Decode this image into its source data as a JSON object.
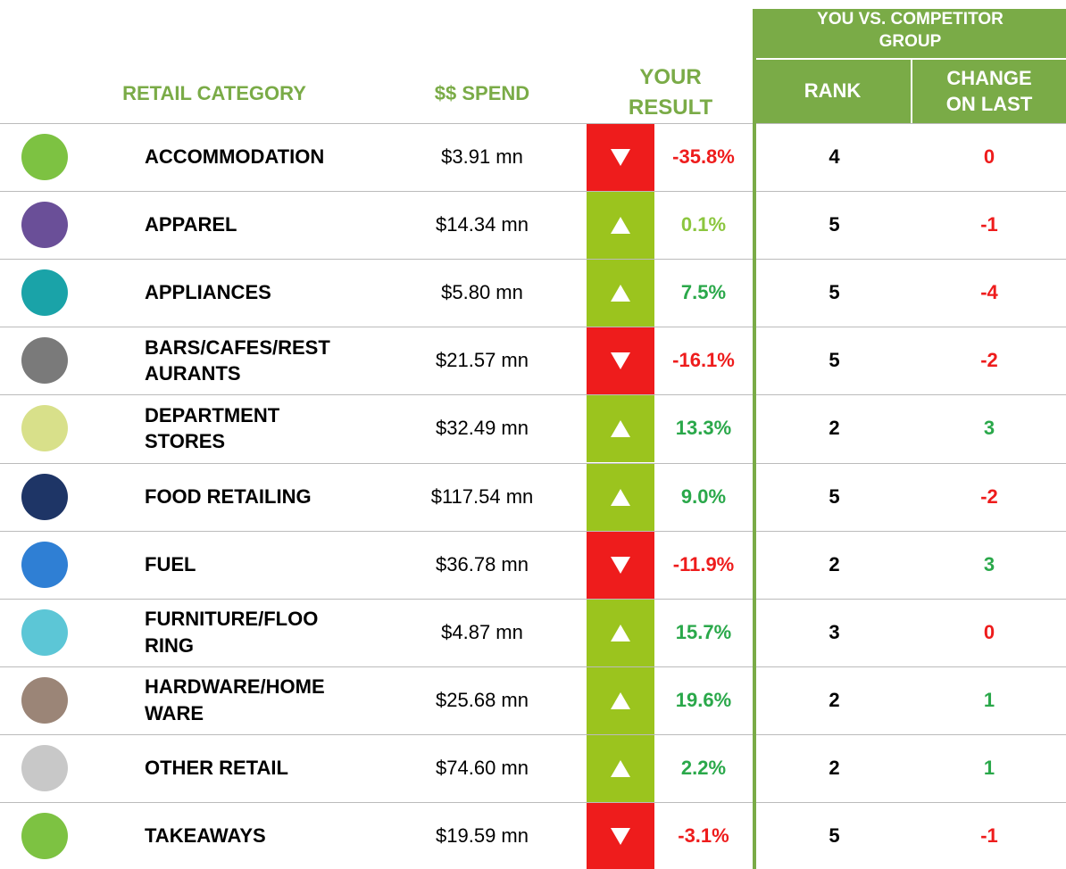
{
  "header": {
    "category": "RETAIL CATEGORY",
    "spend": "$$ SPEND",
    "result": "YOUR\nRESULT",
    "group": "YOU VS. COMPETITOR\nGROUP",
    "rank": "RANK",
    "change": "CHANGE\nON LAST"
  },
  "colors": {
    "header": "#7aab47",
    "up_box": "#9bc41e",
    "down_box": "#ee1c1c",
    "red": "#ee1c1c",
    "green": "#2aa84a",
    "light_green": "#8cc63f"
  },
  "rows": [
    {
      "name": "ACCOMMODATION",
      "spend": "$3.91 mn",
      "result": "-35.8%",
      "result_color": "red",
      "rank": "4",
      "change": "0",
      "change_color": "red",
      "icon_color": "#7dc242"
    },
    {
      "name": "APPAREL",
      "spend": "$14.34 mn",
      "result": "0.1%",
      "result_color": "light_green",
      "rank": "5",
      "change": "-1",
      "change_color": "red",
      "icon_color": "#6a4f98"
    },
    {
      "name": "APPLIANCES",
      "spend": "$5.80 mn",
      "result": "7.5%",
      "result_color": "green",
      "rank": "5",
      "change": "-4",
      "change_color": "red",
      "icon_color": "#1aa3a8"
    },
    {
      "name": "BARS/CAFES/REST\nAURANTS",
      "spend": "$21.57 mn",
      "result": "-16.1%",
      "result_color": "red",
      "rank": "5",
      "change": "-2",
      "change_color": "red",
      "icon_color": "#7a7a7a"
    },
    {
      "name": "DEPARTMENT\nSTORES",
      "spend": "$32.49 mn",
      "result": "13.3%",
      "result_color": "green",
      "rank": "2",
      "change": "3",
      "change_color": "green",
      "icon_color": "#d8e08a"
    },
    {
      "name": "FOOD RETAILING",
      "spend": "$117.54 mn",
      "result": "9.0%",
      "result_color": "green",
      "rank": "5",
      "change": "-2",
      "change_color": "red",
      "icon_color": "#1e3566"
    },
    {
      "name": "FUEL",
      "spend": "$36.78 mn",
      "result": "-11.9%",
      "result_color": "red",
      "rank": "2",
      "change": "3",
      "change_color": "green",
      "icon_color": "#2f7fd4"
    },
    {
      "name": "FURNITURE/FLOO\nRING",
      "spend": "$4.87 mn",
      "result": "15.7%",
      "result_color": "green",
      "rank": "3",
      "change": "0",
      "change_color": "red",
      "icon_color": "#5cc6d6"
    },
    {
      "name": "HARDWARE/HOME\nWARE",
      "spend": "$25.68 mn",
      "result": "19.6%",
      "result_color": "green",
      "rank": "2",
      "change": "1",
      "change_color": "green",
      "icon_color": "#9b8577"
    },
    {
      "name": "OTHER RETAIL",
      "spend": "$74.60 mn",
      "result": "2.2%",
      "result_color": "green",
      "rank": "2",
      "change": "1",
      "change_color": "green",
      "icon_color": "#c8c8c8"
    },
    {
      "name": "TAKEAWAYS",
      "spend": "$19.59 mn",
      "result": "-3.1%",
      "result_color": "red",
      "rank": "5",
      "change": "-1",
      "change_color": "red",
      "icon_color": "#7dc242"
    }
  ]
}
